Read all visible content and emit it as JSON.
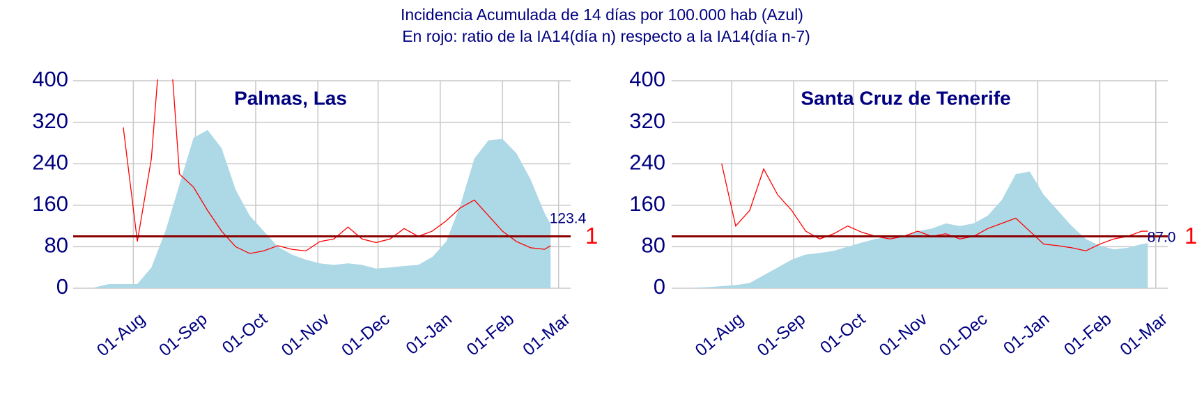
{
  "title": [
    "Incidencia Acumulada de 14 días por 100.000 hab (Azul)",
    "En rojo: ratio de la IA14(día n) respecto a la IA14(día n-7)"
  ],
  "chart_data": [
    {
      "type": "area",
      "title": "Palmas, Las",
      "x": [
        "07-13",
        "07-20",
        "07-27",
        "08-03",
        "08-10",
        "08-17",
        "08-24",
        "08-31",
        "09-07",
        "09-14",
        "09-21",
        "09-28",
        "10-05",
        "10-12",
        "10-19",
        "10-26",
        "11-02",
        "11-09",
        "11-16",
        "11-23",
        "11-30",
        "12-07",
        "12-14",
        "12-21",
        "12-28",
        "01-04",
        "01-11",
        "01-18",
        "01-25",
        "02-01",
        "02-08",
        "02-15",
        "02-22",
        "02-25"
      ],
      "series": [
        {
          "type": "area",
          "color": "#add8e6",
          "values": [
            2,
            8,
            8,
            8,
            40,
            110,
            200,
            290,
            305,
            270,
            190,
            140,
            110,
            80,
            65,
            55,
            48,
            45,
            48,
            45,
            38,
            40,
            43,
            45,
            60,
            90,
            160,
            250,
            285,
            288,
            260,
            210,
            145,
            123.4
          ]
        },
        {
          "type": "line",
          "color": "#ff0000",
          "values": [
            null,
            null,
            310,
            90,
            250,
            600,
            220,
            195,
            150,
            110,
            80,
            67,
            72,
            82,
            75,
            72,
            90,
            95,
            118,
            95,
            88,
            95,
            115,
            100,
            110,
            130,
            155,
            170,
            140,
            110,
            90,
            78,
            75,
            82
          ]
        }
      ],
      "end_label": "123.4",
      "reference_line": {
        "value": 100,
        "label": "1",
        "color": "#8b0000"
      },
      "xlim": [
        "07-02",
        "03-07"
      ],
      "xticks": [
        {
          "value": "08-01",
          "label": "01-Aug"
        },
        {
          "value": "09-01",
          "label": "01-Sep"
        },
        {
          "value": "10-01",
          "label": "01-Oct"
        },
        {
          "value": "11-01",
          "label": "01-Nov"
        },
        {
          "value": "12-01",
          "label": "01-Dec"
        },
        {
          "value": "01-01",
          "label": "01-Jan"
        },
        {
          "value": "02-01",
          "label": "01-Feb"
        },
        {
          "value": "03-01",
          "label": "01-Mar"
        }
      ],
      "ylim": [
        0,
        400
      ],
      "yticks": [
        0,
        80,
        160,
        240,
        320,
        400
      ],
      "grid": true
    },
    {
      "type": "area",
      "title": "Santa Cruz de Tenerife",
      "x": [
        "07-13",
        "07-20",
        "07-27",
        "08-03",
        "08-10",
        "08-17",
        "08-24",
        "08-31",
        "09-07",
        "09-14",
        "09-21",
        "09-28",
        "10-05",
        "10-12",
        "10-19",
        "10-26",
        "11-02",
        "11-09",
        "11-16",
        "11-23",
        "11-30",
        "12-07",
        "12-14",
        "12-21",
        "12-28",
        "01-04",
        "01-11",
        "01-18",
        "01-25",
        "02-01",
        "02-08",
        "02-15",
        "02-22",
        "02-25"
      ],
      "series": [
        {
          "type": "area",
          "color": "#add8e6",
          "values": [
            1,
            2,
            4,
            6,
            10,
            25,
            40,
            55,
            65,
            68,
            72,
            80,
            88,
            95,
            100,
            100,
            110,
            115,
            125,
            120,
            125,
            140,
            170,
            220,
            225,
            180,
            150,
            120,
            95,
            82,
            75,
            78,
            85,
            87.0
          ]
        },
        {
          "type": "line",
          "color": "#ff0000",
          "values": [
            null,
            null,
            240,
            120,
            150,
            230,
            180,
            150,
            110,
            95,
            105,
            120,
            108,
            100,
            95,
            100,
            110,
            100,
            105,
            95,
            100,
            115,
            125,
            135,
            110,
            85,
            82,
            78,
            72,
            85,
            95,
            100,
            110,
            110
          ]
        }
      ],
      "end_label": "87.0",
      "reference_line": {
        "value": 100,
        "label": "1",
        "color": "#8b0000"
      },
      "xlim": [
        "07-02",
        "03-07"
      ],
      "xticks": [
        {
          "value": "08-01",
          "label": "01-Aug"
        },
        {
          "value": "09-01",
          "label": "01-Sep"
        },
        {
          "value": "10-01",
          "label": "01-Oct"
        },
        {
          "value": "11-01",
          "label": "01-Nov"
        },
        {
          "value": "12-01",
          "label": "01-Dec"
        },
        {
          "value": "01-01",
          "label": "01-Jan"
        },
        {
          "value": "02-01",
          "label": "01-Feb"
        },
        {
          "value": "03-01",
          "label": "01-Mar"
        }
      ],
      "ylim": [
        0,
        400
      ],
      "yticks": [
        0,
        80,
        160,
        240,
        320,
        400
      ],
      "grid": true
    }
  ]
}
